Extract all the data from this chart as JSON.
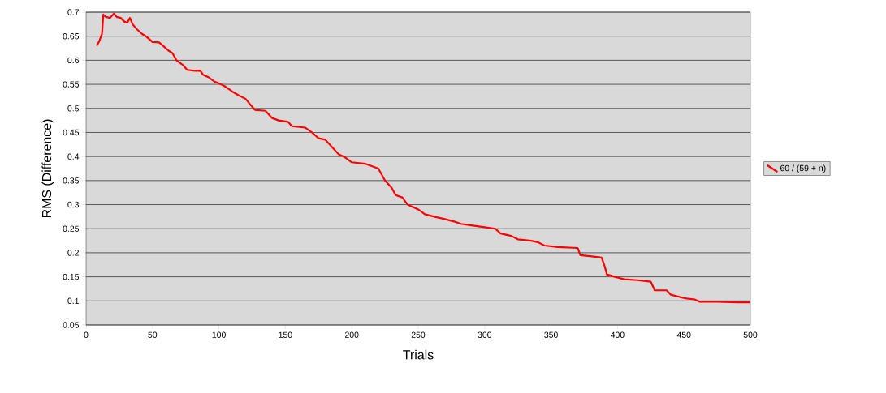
{
  "chart_data": {
    "type": "line",
    "xlabel": "Trials",
    "ylabel": "RMS (Difference)",
    "xlim": [
      0,
      500
    ],
    "xticks": [
      0,
      50,
      100,
      150,
      200,
      250,
      300,
      350,
      400,
      450,
      500
    ],
    "ylim": [
      0.05,
      0.7
    ],
    "yticks": [
      0.05,
      0.1,
      0.15,
      0.2,
      0.25,
      0.3,
      0.35,
      0.4,
      0.45,
      0.5,
      0.55,
      0.6,
      0.65,
      0.7
    ],
    "grid": "y",
    "legend": "right",
    "marker": "none",
    "line_style": "solid",
    "series": [
      {
        "name": "60 / (59 + n)",
        "color": "#ff0000",
        "x": [
          8,
          10,
          12,
          13,
          15,
          18,
          21,
          23,
          26,
          29,
          31,
          33,
          35,
          38,
          42,
          45,
          50,
          55,
          58,
          62,
          65,
          68,
          73,
          76,
          82,
          86,
          88,
          92,
          97,
          100,
          105,
          110,
          115,
          120,
          123,
          127,
          135,
          140,
          145,
          152,
          155,
          165,
          170,
          175,
          180,
          185,
          190,
          195,
          200,
          210,
          215,
          220,
          225,
          230,
          233,
          238,
          242,
          250,
          255,
          262,
          270,
          277,
          282,
          290,
          300,
          308,
          312,
          320,
          325,
          335,
          340,
          345,
          355,
          370,
          372,
          382,
          388,
          390,
          392,
          398,
          405,
          415,
          425,
          428,
          437,
          440,
          447,
          452,
          458,
          462,
          475,
          490,
          500
        ],
        "values": [
          0.63,
          0.64,
          0.655,
          0.695,
          0.69,
          0.688,
          0.697,
          0.69,
          0.688,
          0.68,
          0.678,
          0.688,
          0.675,
          0.665,
          0.655,
          0.65,
          0.638,
          0.637,
          0.63,
          0.62,
          0.615,
          0.6,
          0.59,
          0.58,
          0.578,
          0.578,
          0.57,
          0.565,
          0.555,
          0.552,
          0.545,
          0.535,
          0.527,
          0.52,
          0.51,
          0.497,
          0.495,
          0.48,
          0.475,
          0.472,
          0.463,
          0.46,
          0.45,
          0.438,
          0.435,
          0.42,
          0.405,
          0.398,
          0.388,
          0.385,
          0.38,
          0.375,
          0.35,
          0.335,
          0.32,
          0.315,
          0.3,
          0.29,
          0.28,
          0.275,
          0.27,
          0.265,
          0.26,
          0.257,
          0.253,
          0.25,
          0.24,
          0.235,
          0.228,
          0.225,
          0.222,
          0.215,
          0.212,
          0.21,
          0.195,
          0.192,
          0.19,
          0.175,
          0.155,
          0.15,
          0.145,
          0.143,
          0.14,
          0.122,
          0.122,
          0.113,
          0.108,
          0.105,
          0.103,
          0.098,
          0.098,
          0.097,
          0.097
        ]
      }
    ]
  }
}
